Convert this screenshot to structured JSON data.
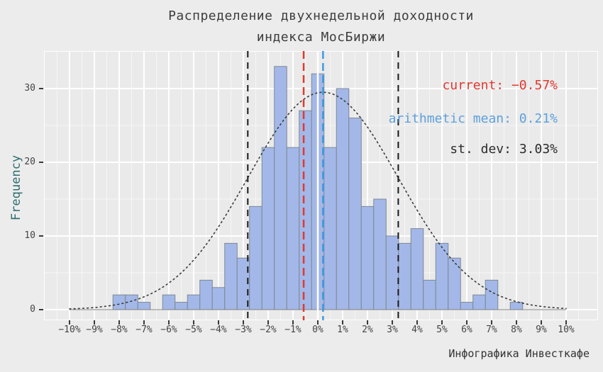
{
  "title": {
    "line1": "Распределение двухнедельной доходности",
    "line2": "индекса МосБиржи"
  },
  "caption": "Инфографика Инвесткафе",
  "colors": {
    "background": "#ececec",
    "panel": "#eaeaea",
    "grid": "#ffffff",
    "bar_fill": "#a3b8e8",
    "bar_border": "#7d8795",
    "curve": "#3a3a3a",
    "baseline": "#7a7a7a",
    "black_dash": "#1a1a1a",
    "red": "#e0392e",
    "blue_dash": "#3d9ae0",
    "blue_text": "#5ea0dc",
    "dark_text": "#2b2b2b",
    "axis_text": "#454545",
    "ylabel_text": "#2e6d6e"
  },
  "chart_data": {
    "type": "bar",
    "subtype": "histogram",
    "title": "Распределение двухнедельной доходности индекса МосБиржи",
    "xlabel": "",
    "ylabel": "Frequency",
    "xlim": [
      -11,
      11.3
    ],
    "ylim": [
      0,
      35.1
    ],
    "grid": true,
    "bin_width_pct": 0.5,
    "bin_centers_pct": [
      -8,
      -7.5,
      -7,
      -6.5,
      -6,
      -5.5,
      -5,
      -4.5,
      -4,
      -3.5,
      -3,
      -2.5,
      -2,
      -1.5,
      -1,
      -0.5,
      0,
      0.5,
      1,
      1.5,
      2,
      2.5,
      3,
      3.5,
      4,
      4.5,
      5,
      5.5,
      6,
      6.5,
      7,
      7.5,
      8
    ],
    "counts": [
      2,
      2,
      1,
      0,
      2,
      1,
      2,
      4,
      3,
      9,
      7,
      14,
      22,
      33,
      22,
      27,
      32,
      22,
      30,
      26,
      14,
      15,
      10,
      9,
      11,
      4,
      9,
      7,
      1,
      2,
      4,
      0,
      1
    ],
    "x_tick_values": [
      -10,
      -9,
      -8,
      -7,
      -6,
      -5,
      -4,
      -3,
      -2,
      -1,
      0,
      1,
      2,
      3,
      4,
      5,
      6,
      7,
      8,
      9,
      10
    ],
    "x_tick_labels": [
      "−10%",
      "−9%",
      "−8%",
      "−7%",
      "−6%",
      "−5%",
      "−4%",
      "−3%",
      "−2%",
      "−1%",
      "0%",
      "1%",
      "2%",
      "3%",
      "4%",
      "5%",
      "6%",
      "7%",
      "8%",
      "9%",
      "10%"
    ],
    "y_tick_values": [
      0,
      10,
      20,
      30
    ],
    "y_tick_labels": [
      "0",
      "10",
      "20",
      "30"
    ],
    "y_grid_minor": [
      5,
      15,
      25
    ],
    "normal_curve": {
      "mean": 0.21,
      "sd": 3.03,
      "peak": 29.5,
      "style": "dotted"
    },
    "stats": {
      "current_pct": -0.57,
      "mean_pct": 0.21,
      "std_dev_pct": 3.03
    },
    "vlines": [
      {
        "name": "stdev-lower-line",
        "x": -2.82,
        "colorKey": "black_dash",
        "width": 2,
        "dash": "9 7"
      },
      {
        "name": "stdev-upper-line",
        "x": 3.24,
        "colorKey": "black_dash",
        "width": 2,
        "dash": "9 7"
      },
      {
        "name": "current-line",
        "x": -0.57,
        "colorKey": "red",
        "width": 2.5,
        "dash": "11 6"
      },
      {
        "name": "mean-line",
        "x": 0.21,
        "colorKey": "blue_dash",
        "width": 2.5,
        "dash": "11 6"
      }
    ],
    "annotations": [
      {
        "name": "current-annotation",
        "text": "current: −0.57%",
        "colorKey": "red"
      },
      {
        "name": "mean-annotation",
        "text": "arithmetic mean: 0.21%",
        "colorKey": "blue_text"
      },
      {
        "name": "stdev-annotation",
        "text": "st. dev: 3.03%",
        "colorKey": "dark_text"
      }
    ],
    "legend": "none"
  }
}
